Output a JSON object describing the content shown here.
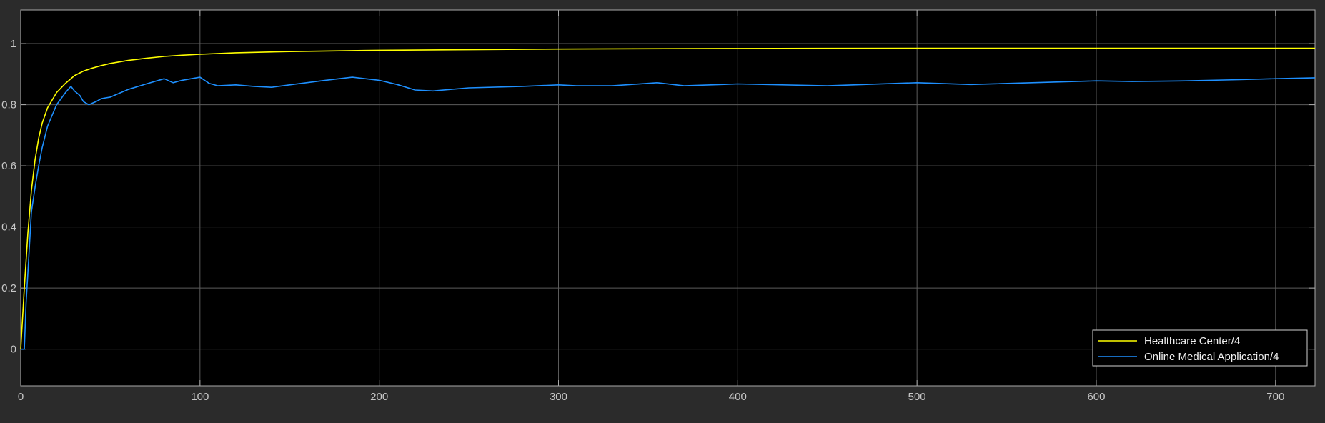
{
  "chart_data": {
    "type": "line",
    "title": "",
    "xlabel": "",
    "ylabel": "",
    "xlim": [
      0,
      722
    ],
    "ylim": [
      -0.12,
      1.11
    ],
    "x_ticks": [
      0,
      100,
      200,
      300,
      400,
      500,
      600,
      700
    ],
    "y_ticks": [
      0,
      0.2,
      0.4,
      0.6,
      0.8,
      1
    ],
    "x_tick_labels": [
      "0",
      "100",
      "200",
      "300",
      "400",
      "500",
      "600",
      "700"
    ],
    "y_tick_labels": [
      "0",
      "0.2",
      "0.4",
      "0.6",
      "0.8",
      "1"
    ],
    "grid": true,
    "legend_position": "bottom-right",
    "background": "#000000",
    "axes_color": "#aaaaaa",
    "series": [
      {
        "name": "Healthcare Center/4",
        "color": "#ffff00",
        "x": [
          0,
          2,
          4,
          6,
          8,
          10,
          12,
          15,
          20,
          25,
          30,
          35,
          40,
          45,
          50,
          60,
          70,
          80,
          90,
          100,
          120,
          150,
          200,
          250,
          300,
          400,
          500,
          600,
          700,
          722
        ],
        "y": [
          0,
          0.2,
          0.38,
          0.52,
          0.62,
          0.69,
          0.74,
          0.79,
          0.84,
          0.87,
          0.895,
          0.91,
          0.92,
          0.928,
          0.935,
          0.945,
          0.952,
          0.958,
          0.962,
          0.965,
          0.97,
          0.974,
          0.978,
          0.98,
          0.982,
          0.984,
          0.985,
          0.985,
          0.985,
          0.985
        ]
      },
      {
        "name": "Online Medical Application/4",
        "color": "#1e90ff",
        "x": [
          0,
          2,
          3,
          4,
          5,
          6,
          8,
          10,
          12,
          15,
          20,
          25,
          28,
          30,
          33,
          35,
          38,
          40,
          42,
          45,
          50,
          60,
          70,
          80,
          85,
          90,
          100,
          105,
          110,
          120,
          130,
          140,
          150,
          170,
          185,
          200,
          210,
          220,
          230,
          250,
          280,
          300,
          310,
          330,
          355,
          370,
          400,
          450,
          500,
          530,
          600,
          620,
          650,
          680,
          700,
          722
        ],
        "y": [
          0,
          0,
          0.15,
          0.25,
          0.35,
          0.45,
          0.53,
          0.6,
          0.66,
          0.73,
          0.8,
          0.84,
          0.86,
          0.845,
          0.83,
          0.81,
          0.8,
          0.805,
          0.81,
          0.82,
          0.825,
          0.85,
          0.868,
          0.885,
          0.872,
          0.88,
          0.89,
          0.87,
          0.862,
          0.865,
          0.86,
          0.857,
          0.865,
          0.88,
          0.89,
          0.88,
          0.866,
          0.848,
          0.845,
          0.855,
          0.86,
          0.865,
          0.862,
          0.862,
          0.872,
          0.862,
          0.868,
          0.862,
          0.872,
          0.866,
          0.878,
          0.876,
          0.878,
          0.882,
          0.885,
          0.888
        ]
      }
    ]
  }
}
